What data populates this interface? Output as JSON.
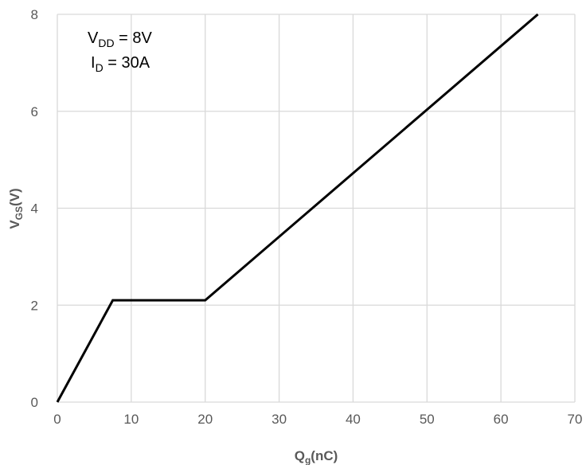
{
  "chart_data": {
    "type": "line",
    "xlabel": {
      "main": "Q",
      "sub": "g",
      "tail": "(nC)"
    },
    "ylabel": {
      "main": "V",
      "sub": "GS",
      "tail": "(V)"
    },
    "xlim": [
      0,
      70
    ],
    "ylim": [
      0,
      8
    ],
    "xticks": [
      "0",
      "10",
      "20",
      "30",
      "40",
      "50",
      "60",
      "70"
    ],
    "yticks": [
      "0",
      "2",
      "4",
      "6",
      "8"
    ],
    "grid": true,
    "annotations": [
      {
        "main": "V",
        "sub": "DD",
        "tail": " = 8V"
      },
      {
        "main": "I",
        "sub": "D",
        "tail": " = 30A"
      }
    ],
    "series": [
      {
        "color": "#000000",
        "x": [
          0,
          7.5,
          20,
          65
        ],
        "y": [
          0,
          2.1,
          2.1,
          8
        ]
      }
    ]
  }
}
